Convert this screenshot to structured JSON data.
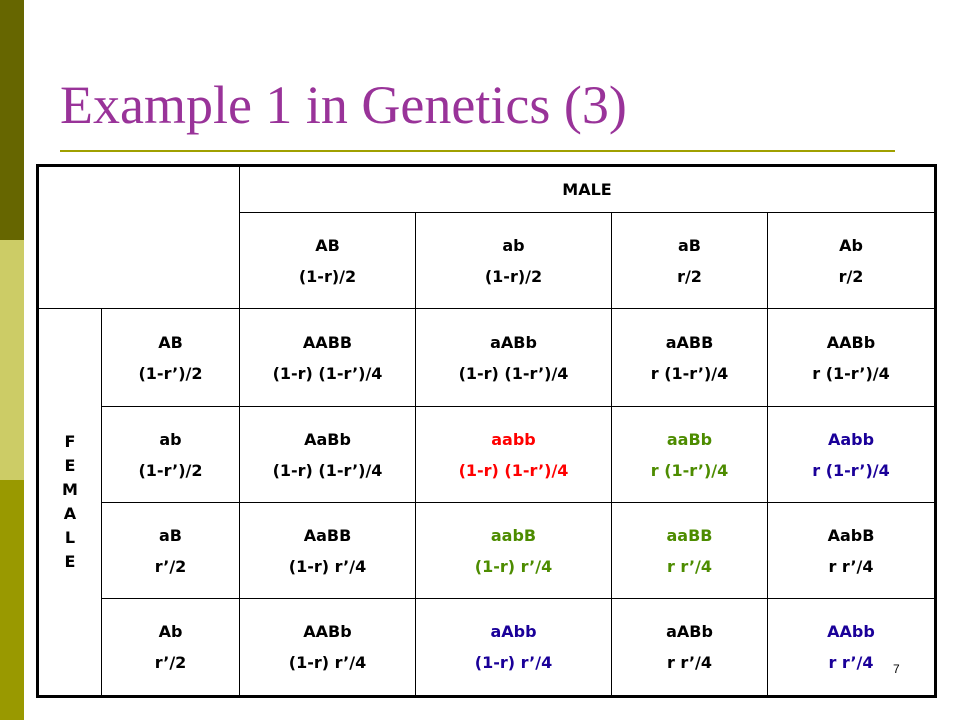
{
  "slide": {
    "title": "Example 1 in Genetics (3)",
    "number": "7"
  },
  "colors": {
    "title": "#993399",
    "accent_rule": "#a0a000",
    "bar_dark": "#666600",
    "bar_light": "#cccc66",
    "bar_mid": "#999900",
    "red": "#ff0000",
    "green": "#4d8c00",
    "blue": "#1a0099"
  },
  "table": {
    "male_header": "MALE",
    "female_letters": [
      "F",
      "E",
      "M",
      "A",
      "L",
      "E"
    ],
    "male_gametes": [
      {
        "gamete": "AB",
        "freq": "(1-r)/2"
      },
      {
        "gamete": "ab",
        "freq": "(1-r)/2"
      },
      {
        "gamete": "aB",
        "freq": "r/2"
      },
      {
        "gamete": "Ab",
        "freq": "r/2"
      }
    ],
    "rows": [
      {
        "gamete": "AB",
        "freq": "(1-r’)/2",
        "cells": [
          {
            "genotype": "AABB",
            "prob": "(1-r) (1-r’)/4",
            "color": "black"
          },
          {
            "genotype": "aABb",
            "prob": "(1-r) (1-r’)/4",
            "color": "black"
          },
          {
            "genotype": "aABB",
            "prob": "r (1-r’)/4",
            "color": "black"
          },
          {
            "genotype": "AABb",
            "prob": "r (1-r’)/4",
            "color": "black"
          }
        ]
      },
      {
        "gamete": "ab",
        "freq": "(1-r’)/2",
        "cells": [
          {
            "genotype": "AaBb",
            "prob": "(1-r) (1-r’)/4",
            "color": "black"
          },
          {
            "genotype": "aabb",
            "prob": "(1-r) (1-r’)/4",
            "color": "red"
          },
          {
            "genotype": "aaBb",
            "prob": "r (1-r’)/4",
            "color": "green"
          },
          {
            "genotype": "Aabb",
            "prob": "r (1-r’)/4",
            "color": "blue"
          }
        ]
      },
      {
        "gamete": "aB",
        "freq": "r’/2",
        "cells": [
          {
            "genotype": "AaBB",
            "prob": "(1-r) r’/4",
            "color": "black"
          },
          {
            "genotype": "aabB",
            "prob": "(1-r) r’/4",
            "color": "green"
          },
          {
            "genotype": "aaBB",
            "prob": "r r’/4",
            "color": "green"
          },
          {
            "genotype": "AabB",
            "prob": "r r’/4",
            "color": "black"
          }
        ]
      },
      {
        "gamete": "Ab",
        "freq": "r’/2",
        "cells": [
          {
            "genotype": "AABb",
            "prob": "(1-r) r’/4",
            "color": "black"
          },
          {
            "genotype": "aAbb",
            "prob": "(1-r) r’/4",
            "color": "blue"
          },
          {
            "genotype": "aABb",
            "prob": "r r’/4",
            "color": "black"
          },
          {
            "genotype": "AAbb",
            "prob": "r r’/4",
            "color": "blue"
          }
        ]
      }
    ]
  }
}
